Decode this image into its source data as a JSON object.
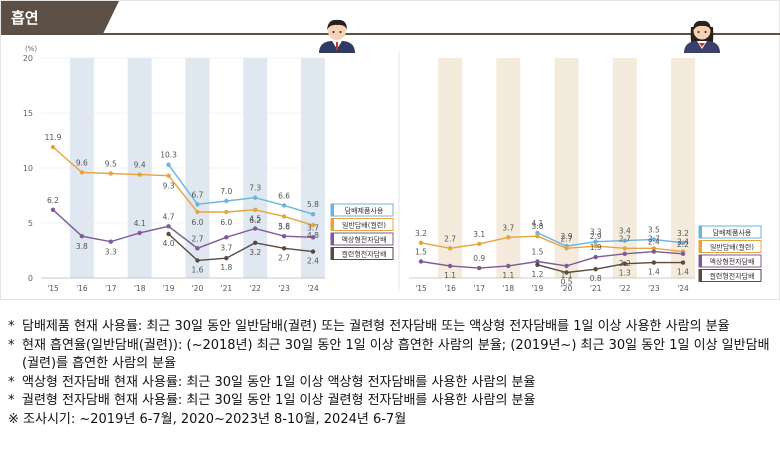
{
  "header": {
    "title": "흡연"
  },
  "colors": {
    "tobacco": "#6bb5dc",
    "cigarette": "#e6a440",
    "liquid": "#7e5a96",
    "heated": "#5b4a40",
    "male_band": "#dfe7f0",
    "female_band": "#f4ebdd",
    "header": "#5c4f45"
  },
  "chart_data": [
    {
      "type": "line",
      "panel": "male",
      "icon": "male-student-icon",
      "yunit": "(%)",
      "ylim": [
        0,
        20
      ],
      "yticks": [
        "0",
        "5",
        "10",
        "15",
        "20"
      ],
      "categories": [
        "'15",
        "'16",
        "'17",
        "'18",
        "'19",
        "'20",
        "'21",
        "'22",
        "'23",
        "'24"
      ],
      "series": [
        {
          "key": "tobacco",
          "name": "담배제품사용",
          "values": [
            null,
            null,
            null,
            null,
            10.3,
            6.7,
            7.0,
            7.3,
            6.6,
            5.8
          ],
          "labels": [
            "",
            "",
            "",
            "",
            "10.3",
            "6.7",
            "7.0",
            "7.3",
            "6.6",
            "5.8"
          ]
        },
        {
          "key": "cigarette",
          "name": "일반담배(궐련)",
          "values": [
            11.9,
            9.6,
            9.5,
            9.4,
            9.3,
            6.0,
            6.0,
            6.2,
            5.6,
            4.8
          ],
          "labels": [
            "11.9",
            "9.6",
            "9.5",
            "9.4",
            "9.3",
            "6.0",
            "6.0",
            "6.2",
            "5.6",
            "4.8"
          ]
        },
        {
          "key": "liquid",
          "name": "액상형전자담배",
          "values": [
            6.2,
            3.8,
            3.3,
            4.1,
            4.7,
            2.7,
            3.7,
            4.5,
            3.8,
            3.7
          ],
          "labels": [
            "6.2",
            "3.8",
            "3.3",
            "4.1",
            "4.7",
            "2.7",
            "3.7",
            "4.5",
            "3.8",
            "3.7"
          ]
        },
        {
          "key": "heated",
          "name": "궐련형전자담배",
          "values": [
            null,
            null,
            null,
            null,
            4.0,
            1.6,
            1.8,
            3.2,
            2.7,
            2.4
          ],
          "labels": [
            "",
            "",
            "",
            "",
            "4.0",
            "1.6",
            "1.8",
            "3.2",
            "2.7",
            "2.4"
          ]
        }
      ]
    },
    {
      "type": "line",
      "panel": "female",
      "icon": "female-student-icon",
      "ylim": [
        0,
        20
      ],
      "categories": [
        "'15",
        "'16",
        "'17",
        "'18",
        "'19",
        "'20",
        "'21",
        "'22",
        "'23",
        "'24"
      ],
      "series": [
        {
          "key": "tobacco",
          "name": "담배제품사용",
          "values": [
            null,
            null,
            null,
            null,
            4.1,
            2.9,
            3.3,
            3.4,
            3.5,
            3.2
          ],
          "labels": [
            "",
            "",
            "",
            "",
            "4.1",
            "2.9",
            "3.3",
            "3.4",
            "3.5",
            "3.2"
          ]
        },
        {
          "key": "cigarette",
          "name": "일반담배(궐련)",
          "values": [
            3.2,
            2.7,
            3.1,
            3.7,
            3.8,
            2.7,
            2.9,
            2.7,
            2.7,
            2.4
          ],
          "labels": [
            "3.2",
            "2.7",
            "3.1",
            "3.7",
            "3.8",
            "2.7",
            "2.9",
            "2.7",
            "2.7",
            "2.4"
          ]
        },
        {
          "key": "liquid",
          "name": "액상형전자담배",
          "values": [
            1.5,
            1.1,
            0.9,
            1.1,
            1.5,
            1.1,
            1.9,
            2.2,
            2.4,
            2.2
          ],
          "labels": [
            "1.5",
            "1.1",
            "0.9",
            "1.1",
            "1.5",
            "1.1",
            "1.9",
            "2.2",
            "2.4",
            "2.2"
          ]
        },
        {
          "key": "heated",
          "name": "궐련형전자담배",
          "values": [
            null,
            null,
            null,
            null,
            1.2,
            0.5,
            0.8,
            1.3,
            1.4,
            1.4
          ],
          "labels": [
            "",
            "",
            "",
            "",
            "1.2",
            "0.5",
            "0.8",
            "1.3",
            "1.4",
            "1.4"
          ]
        }
      ]
    }
  ],
  "notes": [
    {
      "mark": "*",
      "text": "담배제품 현재 사용률: 최근 30일 동안 일반담배(궐련) 또는 궐련형 전자담배 또는 액상형 전자담배를 1일 이상 사용한 사람의 분율"
    },
    {
      "mark": "*",
      "text": "현재 흡연율(일반담배(궐련)): (~2018년) 최근 30일 동안 1일 이상 흡연한 사람의 분율; (2019년~) 최근 30일 동안 1일 이상 일반담배(궐련)를 흡연한 사람의 분율"
    },
    {
      "mark": "*",
      "text": "액상형 전자담배 현재 사용률: 최근 30일 동안 1일 이상 액상형 전자담배를 사용한 사람의 분율"
    },
    {
      "mark": "*",
      "text": "궐련형 전자담배 현재 사용률: 최근 30일 동안 1일 이상 궐련형 전자담배를 사용한 사람의 분율"
    }
  ],
  "survey_period": "※ 조사시기: ~2019년 6-7월, 2020~2023년 8-10월, 2024년 6-7월"
}
